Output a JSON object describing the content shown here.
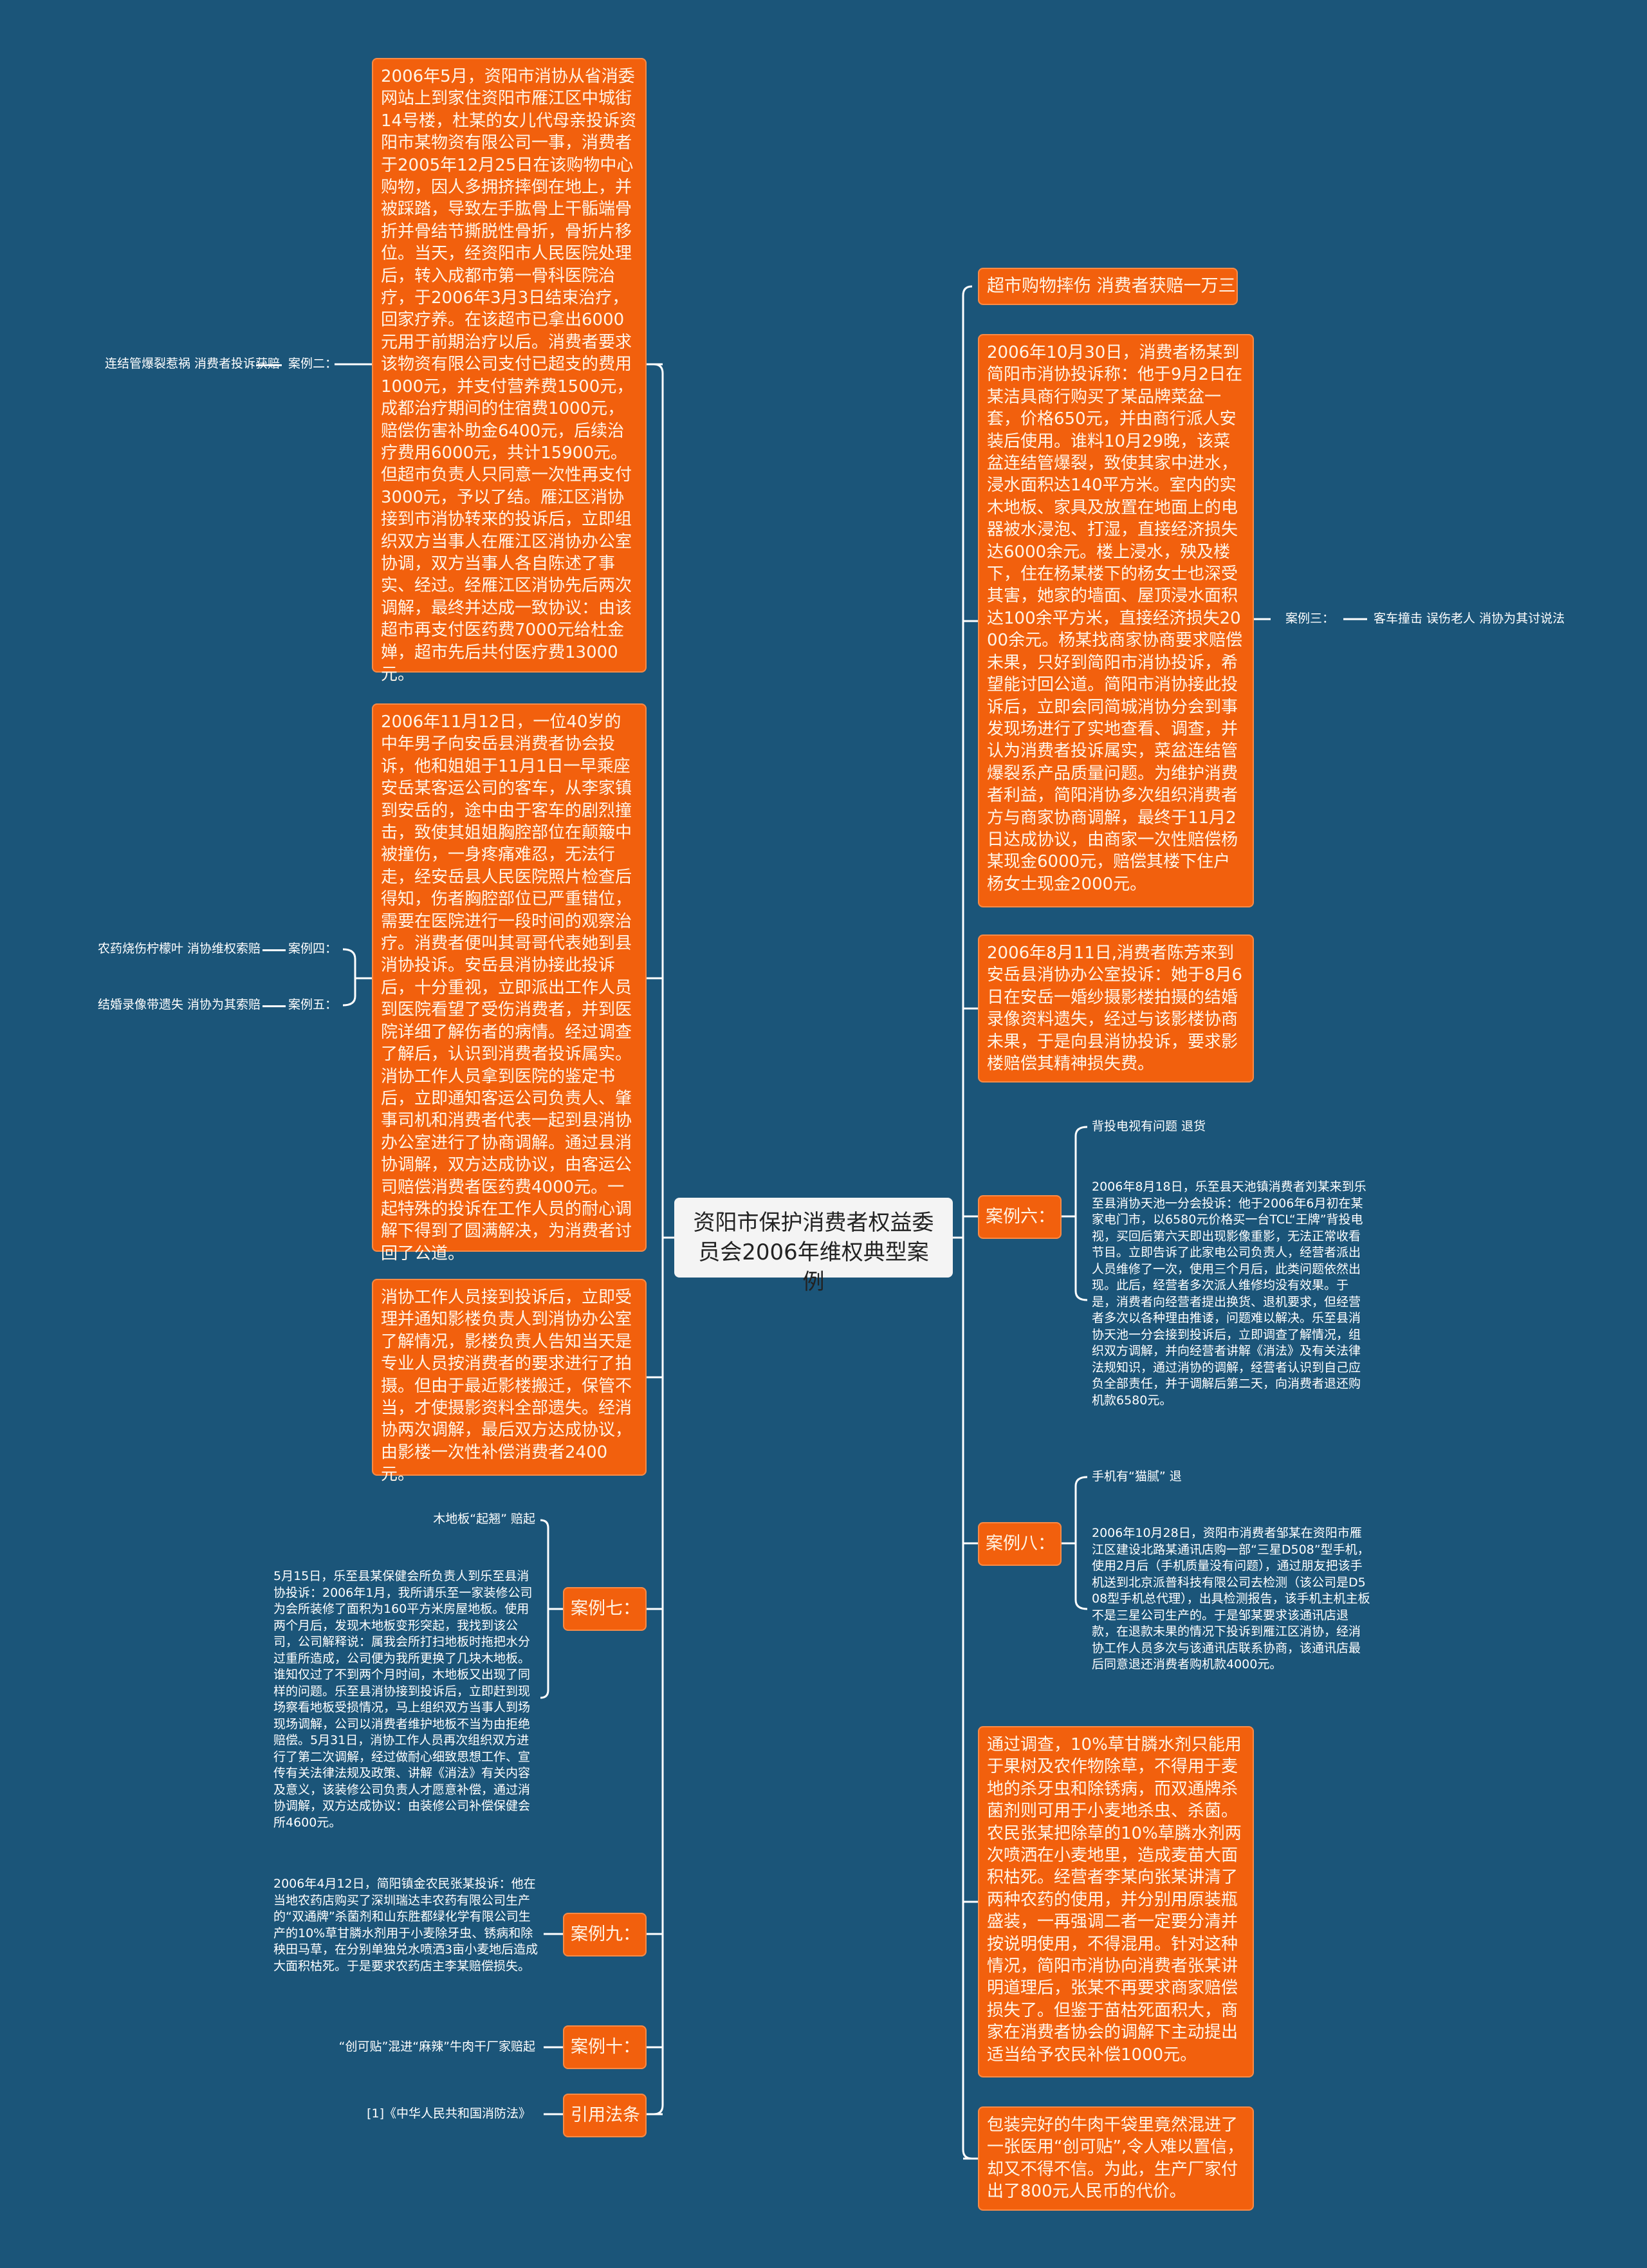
{
  "colors": {
    "background": "#1b5579",
    "node": "#f2600d",
    "root": "#f4f4f4",
    "line": "#ffffff"
  },
  "root": {
    "title": "资阳市保护消费者权益委员会2006年维权典型案例"
  },
  "left_branch": {
    "detail_boxes": [
      "2006年5月，资阳市消协从省消委网站上到家住资阳市雁江区中城街14号楼，杜某的女儿代母亲投诉资阳市某物资有限公司一事，消费者于2005年12月25日在该购物中心购物，因人多拥挤摔倒在地上，并被踩踏，导致左手肱骨上干骺端骨折并骨结节撕脱性骨折，骨折片移位。当天，经资阳市人民医院处理后，转入成都市第一骨科医院治疗，于2006年3月3日结束治疗，回家疗养。在该超市已拿出6000元用于前期治疗以后。消费者要求该物资有限公司支付已超支的费用1000元，并支付营养费1500元，成都治疗期间的住宿费1000元，赔偿伤害补助金6400元，后续治疗费用6000元，共计15900元。但超市负责人只同意一次性再支付3000元，予以了结。雁江区消协接到市消协转来的投诉后，立即组织双方当事人在雁江区消协办公室协调，双方当事人各自陈述了事实、经过。经雁江区消协先后两次调解，最终并达成一致协议：由该超市再支付医药费7000元给杜金婵，超市先后共付医疗费13000元。",
      "2006年11月12日，一位40岁的中年男子向安岳县消费者协会投诉，他和姐姐于11月1日一早乘座安岳某客运公司的客车，从李家镇到安岳的，途中由于客车的剧烈撞击，致使其姐姐胸腔部位在颠簸中被撞伤，一身疼痛难忍，无法行走，经安岳县人民医院照片检查后得知，伤者胸腔部位已严重错位，需要在医院进行一段时间的观察治疗。消费者便叫其哥哥代表她到县消协投诉。安岳县消协接此投诉后，十分重视，立即派出工作人员到医院看望了受伤消费者，并到医院详细了解伤者的病情。经过调查了解后，认识到消费者投诉属实。消协工作人员拿到医院的鉴定书后，立即通知客运公司负责人、肇事司机和消费者代表一起到县消协办公室进行了协商调解。通过县消协调解，双方达成协议，由客运公司赔偿消费者医药费4000元。一起特殊的投诉在工作人员的耐心调解下得到了圆满解决，为消费者讨回了公道。",
      "消协工作人员接到投诉后，立即受理并通知影楼负责人到消协办公室了解情况，影楼负责人告知当天是专业人员按消费者的要求进行了拍摄。但由于最近影楼搬迁，保管不当，才使摄影资料全部遗失。经消协两次调解，最后双方达成协议，由影楼一次性补偿消费者2400元。"
    ],
    "case2": {
      "label": "案例二：",
      "summary": "连结管爆裂惹祸  消费者投诉获赔"
    },
    "case4": {
      "label": "案例四：",
      "summary": "农药烧伤柠檬叶  消协维权索赔"
    },
    "case5": {
      "label": "案例五：",
      "summary": "结婚录像带遗失  消协为其索赔"
    },
    "case7": {
      "label": "案例七：",
      "title": "木地板“起翘”   赔起",
      "body": "5月15日，乐至县某保健会所负责人到乐至县消协投诉：2006年1月，我所请乐至一家装修公司为会所装修了面积为160平方米房屋地板。使用两个月后，发现木地板变形突起，我找到该公司，公司解释说：属我会所打扫地板时拖把水分过重所造成，公司便为我所更换了几块木地板。谁知仅过了不到两个月时间，木地板又出现了同样的问题。乐至县消协接到投诉后，立即赶到现场察看地板受损情况，马上组织双方当事人到场现场调解，公司以消费者维护地板不当为由拒绝赔偿。5月31日，消协工作人员再次组织双方进行了第二次调解，经过做耐心细致思想工作、宣传有关法律法规及政策、讲解《消法》有关内容及意义，该装修公司负责人才愿意补偿，通过消协调解，双方达成协议：由装修公司补偿保健会所4600元。"
    },
    "case9": {
      "label": "案例九：",
      "body": "2006年4月12日，简阳镇金农民张某投诉：他在当地农药店购买了深圳瑞达丰农药有限公司生产的“双通牌”杀菌剂和山东胜都绿化学有限公司生产的10%草甘膦水剂用于小麦除牙虫、锈病和除秧田马草，在分别单独兑水喷洒3亩小麦地后造成大面积枯死。于是要求农药店主李某赔偿损失。"
    },
    "case10": {
      "label": "案例十：",
      "summary": "“创可贴”混进“麻辣”牛肉干厂家赔起"
    },
    "law": {
      "label": "引用法条",
      "ref": "[1]《中华人民共和国消防法》"
    }
  },
  "right_branch": {
    "case1_title": "超市购物摔伤  消费者获赔一万三",
    "detail_boxes": [
      "2006年10月30日，消费者杨某到简阳市消协投诉称：他于9月2日在某洁具商行购买了某品牌菜盆一套，价格650元，并由商行派人安装后使用。谁料10月29晚，该菜盆连结管爆裂，致使其家中进水，浸水面积达140平方米。室内的实木地板、家具及放置在地面上的电器被水浸泡、打湿，直接经济损失达6000余元。楼上浸水，殃及楼下，住在杨某楼下的杨女士也深受其害，她家的墙面、屋顶浸水面积达100余平方米，直接经济损失2000余元。杨某找商家协商要求赔偿未果，只好到简阳市消协投诉，希望能讨回公道。简阳市消协接此投诉后，立即会同简城消协分会到事发现场进行了实地查看、调查，并认为消费者投诉属实，菜盆连结管爆裂系产品质量问题。为维护消费者利益，简阳消协多次组织消费者方与商家协商调解，最终于11月2日达成协议，由商家一次性赔偿杨某现金6000元，赔偿其楼下住户杨女士现金2000元。",
      "2006年8月11日,消费者陈芳来到安岳县消协办公室投诉：她于8月6日在安岳一婚纱摄影楼拍摄的结婚录像资料遗失，经过与该影楼协商未果，于是向县消协投诉，要求影楼赔偿其精神损失费。",
      "通过调查，10%草甘膦水剂只能用于果树及农作物除草，不得用于麦地的杀牙虫和除锈病，而双通牌杀菌剂则可用于小麦地杀虫、杀菌。农民张某把除草的10%草膦水剂两次喷洒在小麦地里，造成麦苗大面积枯死。经营者李某向张某讲清了两种农药的使用，并分别用原装瓶盛装，一再强调二者一定要分清并按说明使用，不得混用。针对这种情况，简阳市消协向消费者张某讲明道理后，张某不再要求商家赔偿损失了。但鉴于苗枯死面积大，商家在消费者协会的调解下主动提出适当给予农民补偿1000元。",
      "包装完好的牛肉干袋里竟然混进了一张医用“创可贴”,令人难以置信，却又不得不信。为此，生产厂家付出了800元人民币的代价。"
    ],
    "case3": {
      "label": "案例三：",
      "summary": "客车撞击  误伤老人  消协为其讨说法"
    },
    "case6": {
      "label": "案例六：",
      "title": "背投电视有问题  退货",
      "body": "2006年8月18日，乐至县天池镇消费者刘某来到乐至县消协天池一分会投诉：他于2006年6月初在某家电门市，以6580元价格买一台TCL“王牌”背投电视，买回后第六天即出现影像重影，无法正常收看节目。立即告诉了此家电公司负责人，经营者派出人员维修了一次，使用三个月后，此类问题依然出现。此后，经营者多次派人维修均没有效果。于是，消费者向经营者提出换货、退机要求，但经营者多次以各种理由推诿，问题难以解决。乐至县消协天池一分会接到投诉后，立即调查了解情况，组织双方调解，并向经营者讲解《消法》及有关法律法规知识，通过消协的调解，经营者认识到自己应负全部责任，并于调解后第二天，向消费者退还购机款6580元。"
    },
    "case8": {
      "label": "案例八：",
      "title": "手机有“猫腻”   退",
      "body": "2006年10月28日，资阳市消费者邹某在资阳市雁江区建设北路某通讯店购一部“三星D508”型手机，使用2月后（手机质量没有问题），通过朋友把该手机送到北京派普科技有限公司去检测（该公司是D508型手机总代理），出具检测报告，该手机主机主板不是三星公司生产的。于是邹某要求该通讯店退款，在退款未果的情况下投诉到雁江区消协，经消协工作人员多次与该通讯店联系协商，该通讯店最后同意退还消费者购机款4000元。"
    }
  }
}
